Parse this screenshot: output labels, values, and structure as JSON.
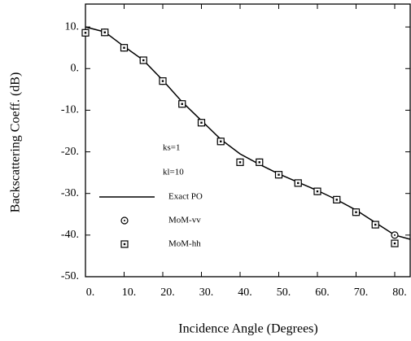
{
  "chart_data": {
    "type": "line",
    "x_label": "Incidence Angle  (Degrees)",
    "y_label": "Backscattering Coeff.  (dB)",
    "annotations": [
      "ks=1",
      "kl=10"
    ],
    "xlim": [
      0,
      84
    ],
    "ylim": [
      -50,
      15.5
    ],
    "xticks": [
      {
        "value": 0,
        "label": "0."
      },
      {
        "value": 10,
        "label": "10."
      },
      {
        "value": 20,
        "label": "20."
      },
      {
        "value": 30,
        "label": "30."
      },
      {
        "value": 40,
        "label": "40."
      },
      {
        "value": 50,
        "label": "50."
      },
      {
        "value": 60,
        "label": "60."
      },
      {
        "value": 70,
        "label": "70."
      },
      {
        "value": 80,
        "label": "80."
      }
    ],
    "yticks": [
      {
        "value": 10,
        "label": "10."
      },
      {
        "value": 0,
        "label": "0."
      },
      {
        "value": -10,
        "label": "-10."
      },
      {
        "value": -20,
        "label": "-20."
      },
      {
        "value": -30,
        "label": "-30."
      },
      {
        "value": -40,
        "label": "-40."
      },
      {
        "value": -50,
        "label": "-50."
      }
    ],
    "series": [
      {
        "name": "Exact PO",
        "style": "line",
        "color": "#000000",
        "x": [
          0,
          5,
          10,
          15,
          20,
          25,
          30,
          35,
          40,
          45,
          50,
          55,
          60,
          65,
          70,
          75,
          80,
          84
        ],
        "values": [
          10,
          8.8,
          5.3,
          2,
          -2.8,
          -8,
          -12.5,
          -17,
          -20.5,
          -23,
          -25.3,
          -27.3,
          -29.3,
          -31.5,
          -34,
          -37,
          -40,
          -41
        ]
      },
      {
        "name": "MoM-vv",
        "style": "circle",
        "color": "#000000",
        "x": [
          5,
          10,
          15,
          20,
          25,
          30,
          35,
          40,
          45,
          50,
          55,
          60,
          65,
          70,
          75,
          80
        ],
        "values": [
          8.7,
          5,
          2,
          -3,
          -8.5,
          -13,
          -17.5,
          -22.5,
          -22.5,
          -25.5,
          -27.5,
          -29.5,
          -31.5,
          -34.5,
          -37.5,
          -40
        ]
      },
      {
        "name": "MoM-hh",
        "style": "square",
        "color": "#000000",
        "x": [
          0,
          5,
          10,
          15,
          20,
          25,
          30,
          35,
          40,
          45,
          50,
          55,
          60,
          65,
          70,
          75,
          80
        ],
        "values": [
          8.6,
          8.7,
          5,
          2,
          -3,
          -8.5,
          -13,
          -17.5,
          -22.5,
          -22.5,
          -25.5,
          -27.5,
          -29.5,
          -31.5,
          -34.5,
          -37.5,
          -42
        ]
      }
    ]
  }
}
